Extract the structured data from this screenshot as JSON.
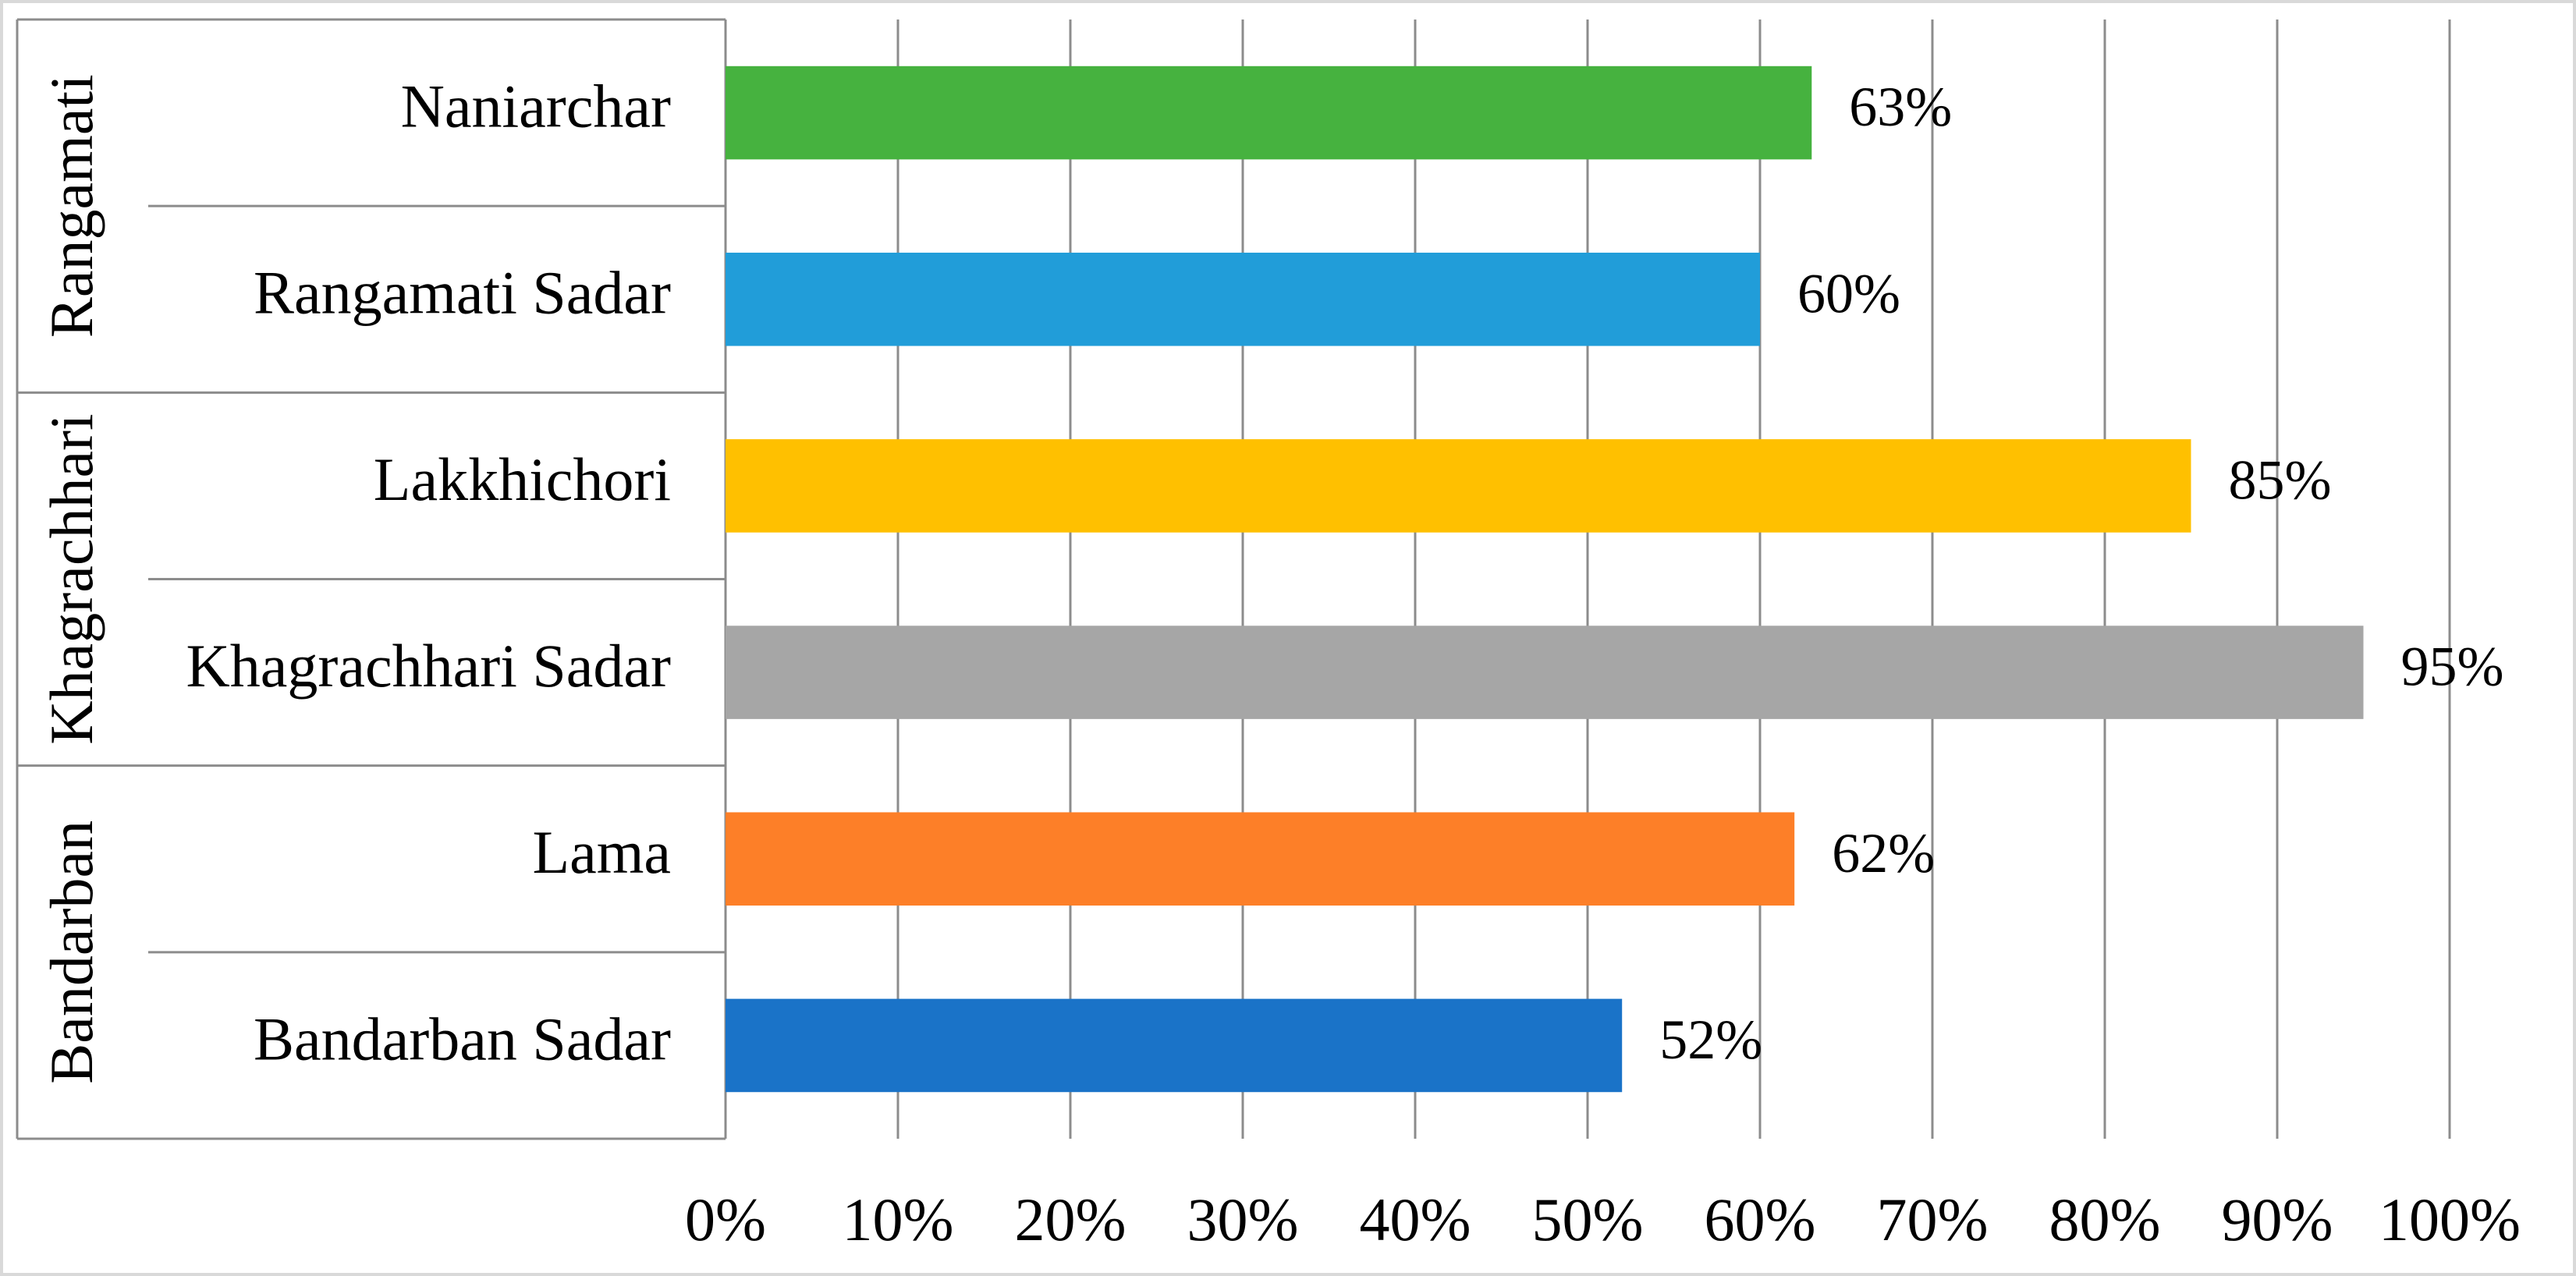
{
  "chart_data": {
    "type": "bar",
    "orientation": "horizontal",
    "groups": [
      {
        "name": "Bandarban",
        "categories": [
          "Bandarban Sadar",
          "Lama"
        ]
      },
      {
        "name": "Khagrachhari",
        "categories": [
          "Khagrachhari Sadar",
          "Lakkhichori"
        ]
      },
      {
        "name": "Rangamati",
        "categories": [
          "Rangamati Sadar",
          "Naniarchar"
        ]
      }
    ],
    "categories": [
      "Bandarban Sadar",
      "Lama",
      "Khagrachhari Sadar",
      "Lakkhichori",
      "Rangamati Sadar",
      "Naniarchar"
    ],
    "values": [
      0.52,
      0.62,
      0.95,
      0.85,
      0.6,
      0.63
    ],
    "data_labels": [
      "52%",
      "62%",
      "95%",
      "85%",
      "60%",
      "63%"
    ],
    "colors": [
      "#1a73c8",
      "#fd7f28",
      "#a6a6a6",
      "#ffc000",
      "#219dd9",
      "#46b23f"
    ],
    "xlim": [
      0,
      1
    ],
    "x_ticks": [
      0,
      0.1,
      0.2,
      0.3,
      0.4,
      0.5,
      0.6,
      0.7,
      0.8,
      0.9,
      1.0
    ],
    "x_tick_labels": [
      "0%",
      "10%",
      "20%",
      "30%",
      "40%",
      "50%",
      "60%",
      "70%",
      "80%",
      "90%",
      "100%"
    ],
    "grid": "vertical",
    "legend": "none",
    "title": "",
    "xlabel": "",
    "ylabel": ""
  }
}
